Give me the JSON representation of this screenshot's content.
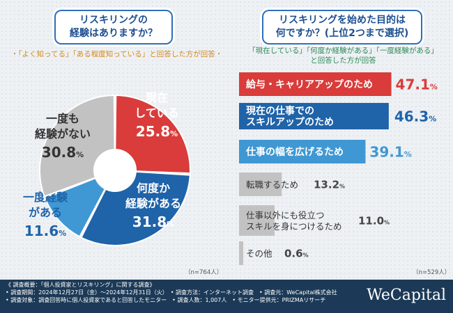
{
  "left_question": {
    "line1": "リスキリングの",
    "line2": "経験はありますか？"
  },
  "left_note": "・「よく知ってる」「ある程度知っている」と回答した方が回答・",
  "right_question": {
    "line1": "リスキリングを始めた目的は",
    "line2": "何ですか？(上位2つまで選択)"
  },
  "right_note": {
    "line1": "「現在している」「何度か経験がある」「一度経験がある」",
    "line2": "と回答した方が回答"
  },
  "left_count": "（n=764人）",
  "right_count": "（n=529人）",
  "colors": {
    "red": "#d93c3a",
    "dark_blue": "#1f63a9",
    "light_blue": "#3f98d3",
    "gray": "#c2c2c2"
  },
  "chart_data": [
    {
      "type": "pie",
      "title": "リスキリングの経験はありますか？",
      "slices": [
        {
          "label_lines": [
            "現在",
            "している"
          ],
          "value": 25.8,
          "value_main": "25.8",
          "color": "#d93c3a",
          "text_color": "#ffffff"
        },
        {
          "label_lines": [
            "何度か",
            "経験がある"
          ],
          "value": 31.8,
          "value_main": "31.8",
          "color": "#1f63a9",
          "text_color": "#ffffff"
        },
        {
          "label_lines": [
            "一度経験",
            "がある"
          ],
          "value": 11.6,
          "value_main": "11.6",
          "color": "#3f98d3",
          "text_color": "#1f63a9"
        },
        {
          "label_lines": [
            "一度も",
            "経験がない"
          ],
          "value": 30.8,
          "value_main": "30.8",
          "color": "#c2c2c2",
          "text_color": "#333333"
        }
      ],
      "unit": "%"
    },
    {
      "type": "bar",
      "title": "リスキリングを始めた目的は何ですか？(上位2つまで選択)",
      "categories": [
        [
          "給与・キャリアアップのため"
        ],
        [
          "現在の仕事での",
          "スキルアップのため"
        ],
        [
          "仕事の幅を広げるため"
        ],
        [
          "転職するため"
        ],
        [
          "仕事以外にも役立つ",
          "スキルを身につけるため"
        ],
        [
          "その他"
        ]
      ],
      "values": [
        47.1,
        46.3,
        39.1,
        13.2,
        11.0,
        0.6
      ],
      "value_labels": [
        "47.1",
        "46.3",
        "39.1",
        "13.2",
        "11.0",
        "0.6"
      ],
      "colors": [
        "#d93c3a",
        "#1f63a9",
        "#3f98d3",
        "#c2c2c2",
        "#c2c2c2",
        "#c2c2c2"
      ],
      "label_colors": [
        "#d93c3a",
        "#1f63a9",
        "#3f98d3",
        "#444444",
        "#444444",
        "#444444"
      ],
      "unit": "%",
      "xlim": [
        0,
        50
      ]
    }
  ],
  "footer": {
    "lines": [
      "《 調査概要：「個人投資家とリスキリング」に関する調査》",
      "• 調査期間：2024年12月27日（金）〜2024年12月31日（火）　• 調査方法：インターネット調査　• 調査元：WeCapital株式会社",
      "• 調査対象：調査回答時に個人投資家であると回答したモニター　• 調査人数：1,007人　• モニター提供元：PRIZMAリサーチ"
    ],
    "logo": "WeCapital"
  }
}
